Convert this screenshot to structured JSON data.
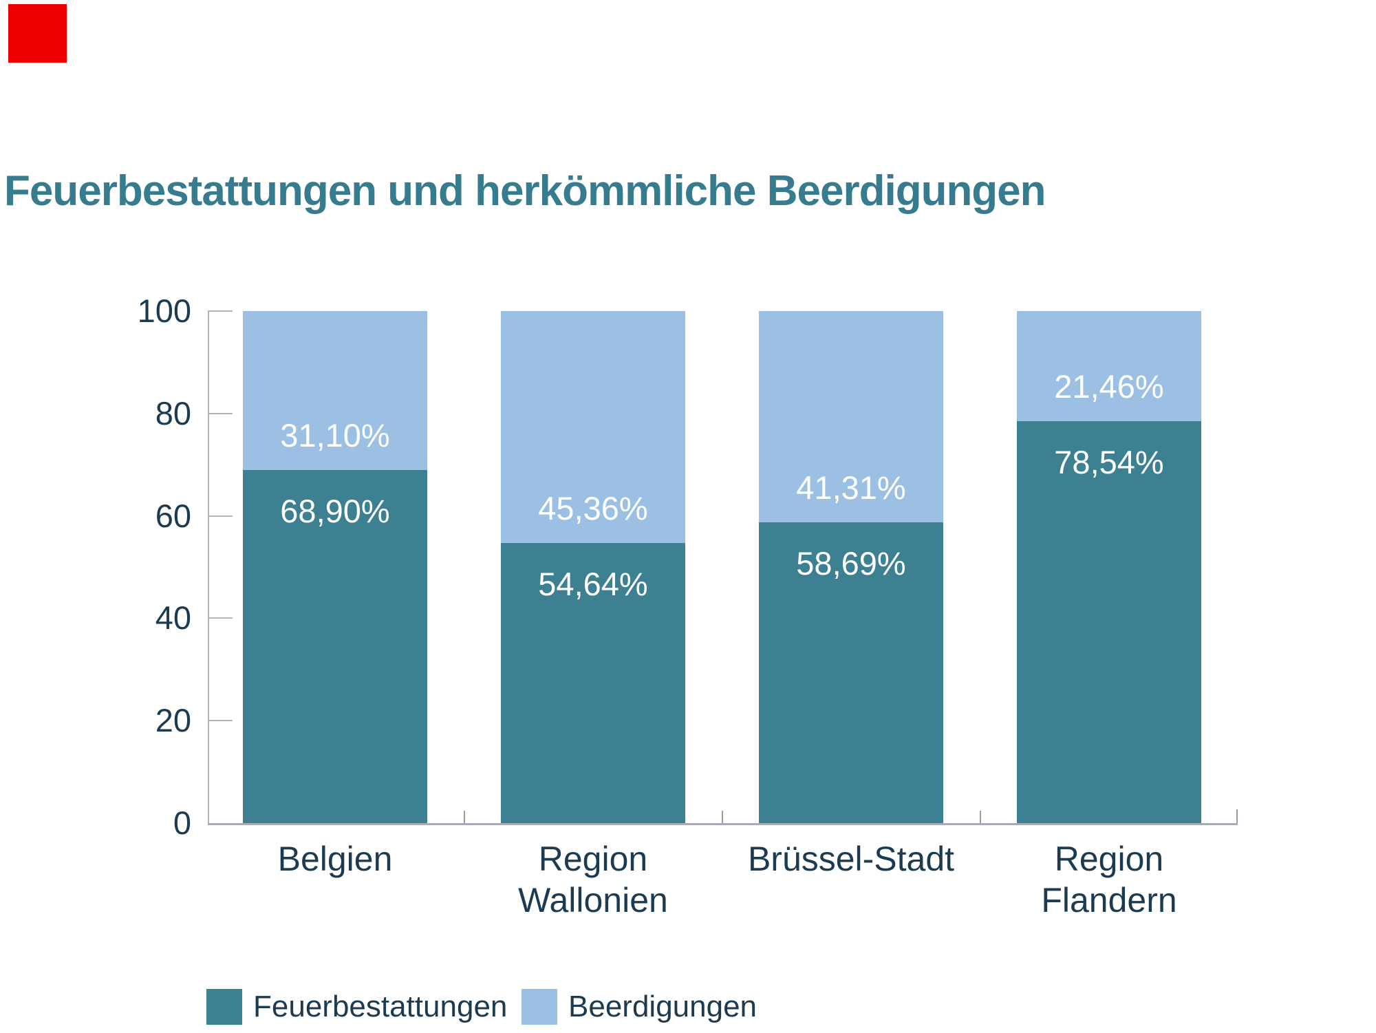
{
  "title": "Feuerbestattungen und herkömmliche Beerdigungen",
  "colors": {
    "background": "#FFFFFF",
    "title_text": "#377B8F",
    "axis_text": "#1C3A50",
    "bar_label_text": "#FFFFFF",
    "cremation_teal": "#3D8092",
    "burial_blue": "#9CC0E3",
    "axis_line": "#B0B3BC",
    "baseline": "#A8ABB3",
    "tick": "#989CA6",
    "marker_red": "#EF0000"
  },
  "chart_data": {
    "type": "bar",
    "variant": "stacked-percent",
    "title": "Feuerbestattungen und herkömmliche Beerdigungen",
    "categories": [
      "Belgien",
      "Region Wallonien",
      "Brüssel-Stadt",
      "Region Flandern"
    ],
    "category_label_lines": [
      [
        "Belgien"
      ],
      [
        "Region",
        "Wallonien"
      ],
      [
        "Brüssel-Stadt"
      ],
      [
        "Region",
        "Flandern"
      ]
    ],
    "series": [
      {
        "name": "Feuerbestattungen",
        "color_key": "cremation_teal",
        "values": [
          68.9,
          54.64,
          58.69,
          78.54
        ],
        "value_labels": [
          "68,90%",
          "54,64%",
          "58,69%",
          "78,54%"
        ]
      },
      {
        "name": "Beerdigungen",
        "color_key": "burial_blue",
        "values": [
          31.1,
          45.36,
          41.31,
          21.46
        ],
        "value_labels": [
          "31,10%",
          "45,36%",
          "41,31%",
          "21,46%"
        ]
      }
    ],
    "xlabel": "",
    "ylabel": "",
    "y_axis": {
      "range": [
        0,
        100
      ],
      "ticks": [
        0,
        20,
        40,
        60,
        80,
        100
      ],
      "tick_labels": [
        "0",
        "20",
        "40",
        "60",
        "80",
        "100"
      ]
    },
    "grid": false,
    "legend_position": "bottom",
    "legend": [
      {
        "label": "Feuerbestattungen",
        "color_key": "cremation_teal"
      },
      {
        "label": "Beerdigungen",
        "color_key": "burial_blue"
      }
    ]
  }
}
